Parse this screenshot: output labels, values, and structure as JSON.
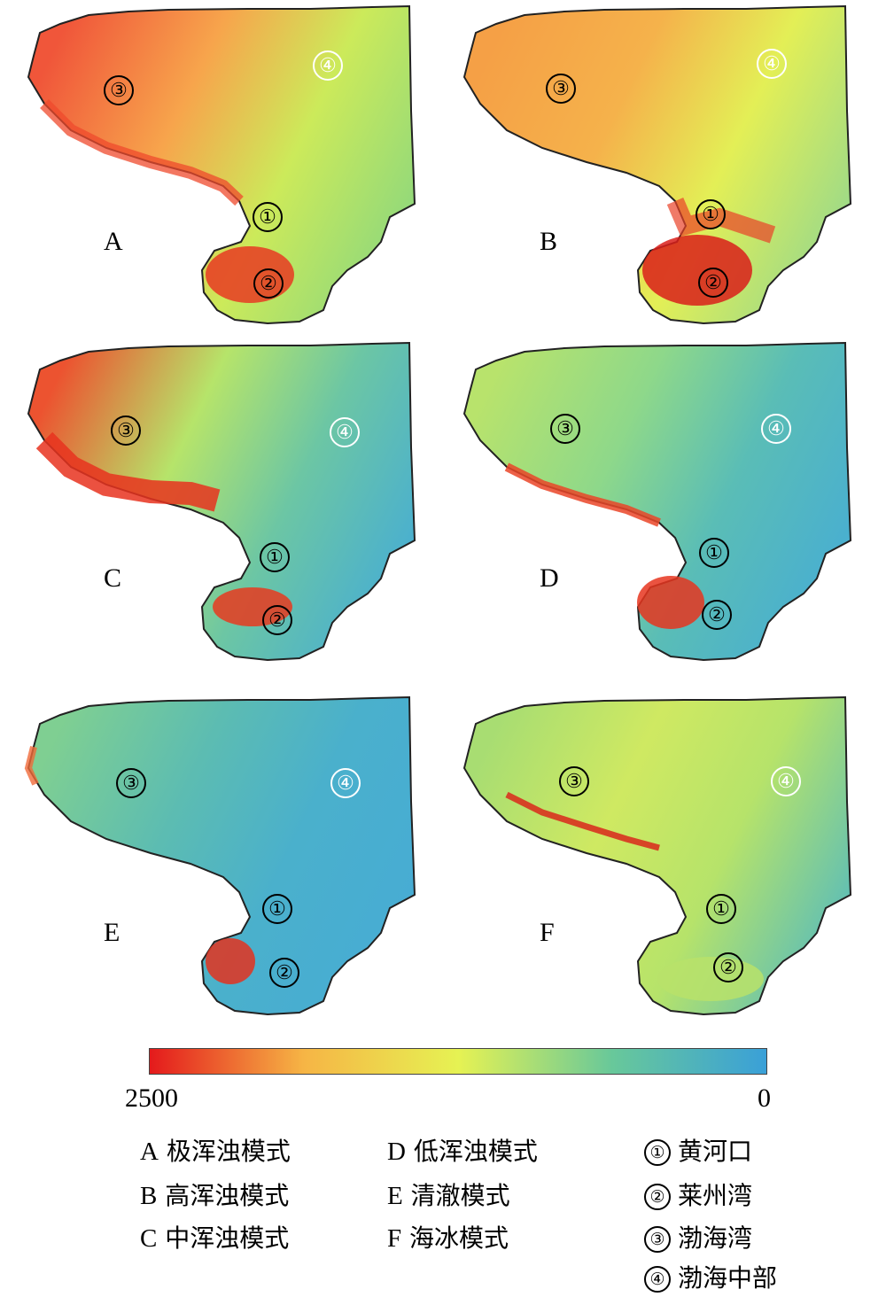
{
  "panels": [
    {
      "letter": "A",
      "markers": [
        "①",
        "②",
        "③",
        "④"
      ],
      "gradient": [
        "#f0563a",
        "#f7a54c",
        "#ccea5a",
        "#8fd87c"
      ],
      "bay": "#e83a22",
      "coast": "#ef4a2c"
    },
    {
      "letter": "B",
      "markers": [
        "①",
        "②",
        "③",
        "④"
      ],
      "gradient": [
        "#f5a046",
        "#f5b24b",
        "#e3ef56",
        "#9ad98a"
      ],
      "bay": "#d91f1a",
      "coast": "#ea4128"
    },
    {
      "letter": "C",
      "markers": [
        "①",
        "②",
        "③",
        "④"
      ],
      "gradient": [
        "#ec5330",
        "#b6e46a",
        "#6cc6a4",
        "#48aed2"
      ],
      "bay": "#e7391f",
      "coast": "#e7331f"
    },
    {
      "letter": "D",
      "markers": [
        "①",
        "②",
        "③",
        "④"
      ],
      "gradient": [
        "#b8e36c",
        "#8ed88a",
        "#5abdb6",
        "#48aed2"
      ],
      "bay": "#e6351e",
      "coast": "#ea4528"
    },
    {
      "letter": "E",
      "markers": [
        "①",
        "②",
        "③",
        "④"
      ],
      "gradient": [
        "#7fcf92",
        "#5cbcb2",
        "#4ab0cc",
        "#47acd4"
      ],
      "bay": "#e3321e",
      "coast": "#f06a3a"
    },
    {
      "letter": "F",
      "markers": [
        "①",
        "②",
        "③",
        "④"
      ],
      "gradient": [
        "#a8dd72",
        "#cfe962",
        "#b6e36a",
        "#5cbdb8"
      ],
      "bay": "#b8e26a",
      "coast": "#d8321f"
    }
  ],
  "colorbar": {
    "max_label": "2500",
    "min_label": "0",
    "colors": [
      "#e41a1c",
      "#f6b545",
      "#e6f253",
      "#68c89a",
      "#3aa0d8"
    ]
  },
  "legend": {
    "modes": [
      {
        "key": "A",
        "label": "极浑浊模式"
      },
      {
        "key": "B",
        "label": "高浑浊模式"
      },
      {
        "key": "C",
        "label": "中浑浊模式"
      },
      {
        "key": "D",
        "label": "低浑浊模式"
      },
      {
        "key": "E",
        "label": "清澈模式"
      },
      {
        "key": "F",
        "label": "海冰模式"
      }
    ],
    "regions": [
      {
        "key": "①",
        "label": "黄河口"
      },
      {
        "key": "②",
        "label": "莱州湾"
      },
      {
        "key": "③",
        "label": "渤海湾"
      },
      {
        "key": "④",
        "label": "渤海中部"
      }
    ]
  }
}
